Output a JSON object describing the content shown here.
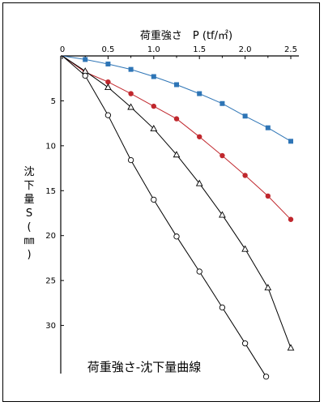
{
  "chart_data": {
    "type": "line",
    "title": "荷重強さ-沈下量曲線",
    "xlabel": "荷重強さ　P (tf/㎡)",
    "ylabel": [
      "沈",
      "下",
      "量",
      "S",
      "(",
      "㎜",
      ")"
    ],
    "xlim": [
      0,
      2.5
    ],
    "ylim": [
      0,
      35
    ],
    "y_inverted": true,
    "x_axis_position": "top",
    "xticks": [
      "0",
      "0.5",
      "1.0",
      "1.5",
      "2.0",
      "2.5"
    ],
    "yticks": [
      "5",
      "10",
      "15",
      "20",
      "25",
      "30"
    ],
    "grid": false,
    "series": [
      {
        "marker": "square",
        "color": "#2e75b6",
        "x": [
          0,
          0.25,
          0.5,
          0.75,
          1.0,
          1.25,
          1.5,
          1.75,
          2.0,
          2.25,
          2.5
        ],
        "y": [
          0,
          0.4,
          0.9,
          1.5,
          2.3,
          3.2,
          4.2,
          5.3,
          6.7,
          8.0,
          9.5
        ]
      },
      {
        "marker": "circle-filled",
        "color": "#c0272d",
        "x": [
          0,
          0.25,
          0.5,
          0.75,
          1.0,
          1.25,
          1.5,
          1.75,
          2.0,
          2.25,
          2.5
        ],
        "y": [
          0,
          1.8,
          2.9,
          4.2,
          5.6,
          7.0,
          9.0,
          11.1,
          13.3,
          15.6,
          18.2
        ]
      },
      {
        "marker": "triangle",
        "color": "#000000",
        "x": [
          0,
          0.25,
          0.5,
          0.75,
          1.0,
          1.25,
          1.5,
          1.75,
          2.0,
          2.25,
          2.5
        ],
        "y": [
          0,
          1.7,
          3.5,
          5.7,
          8.1,
          11.0,
          14.2,
          17.7,
          21.5,
          25.8,
          32.5
        ]
      },
      {
        "marker": "circle-open",
        "color": "#000000",
        "x": [
          0,
          0.25,
          0.5,
          0.75,
          1.0,
          1.25,
          1.5,
          1.75,
          2.0,
          2.23
        ],
        "y": [
          0,
          2.2,
          6.6,
          11.6,
          16.0,
          20.1,
          24.0,
          28.0,
          32.0,
          35.7
        ]
      }
    ]
  }
}
